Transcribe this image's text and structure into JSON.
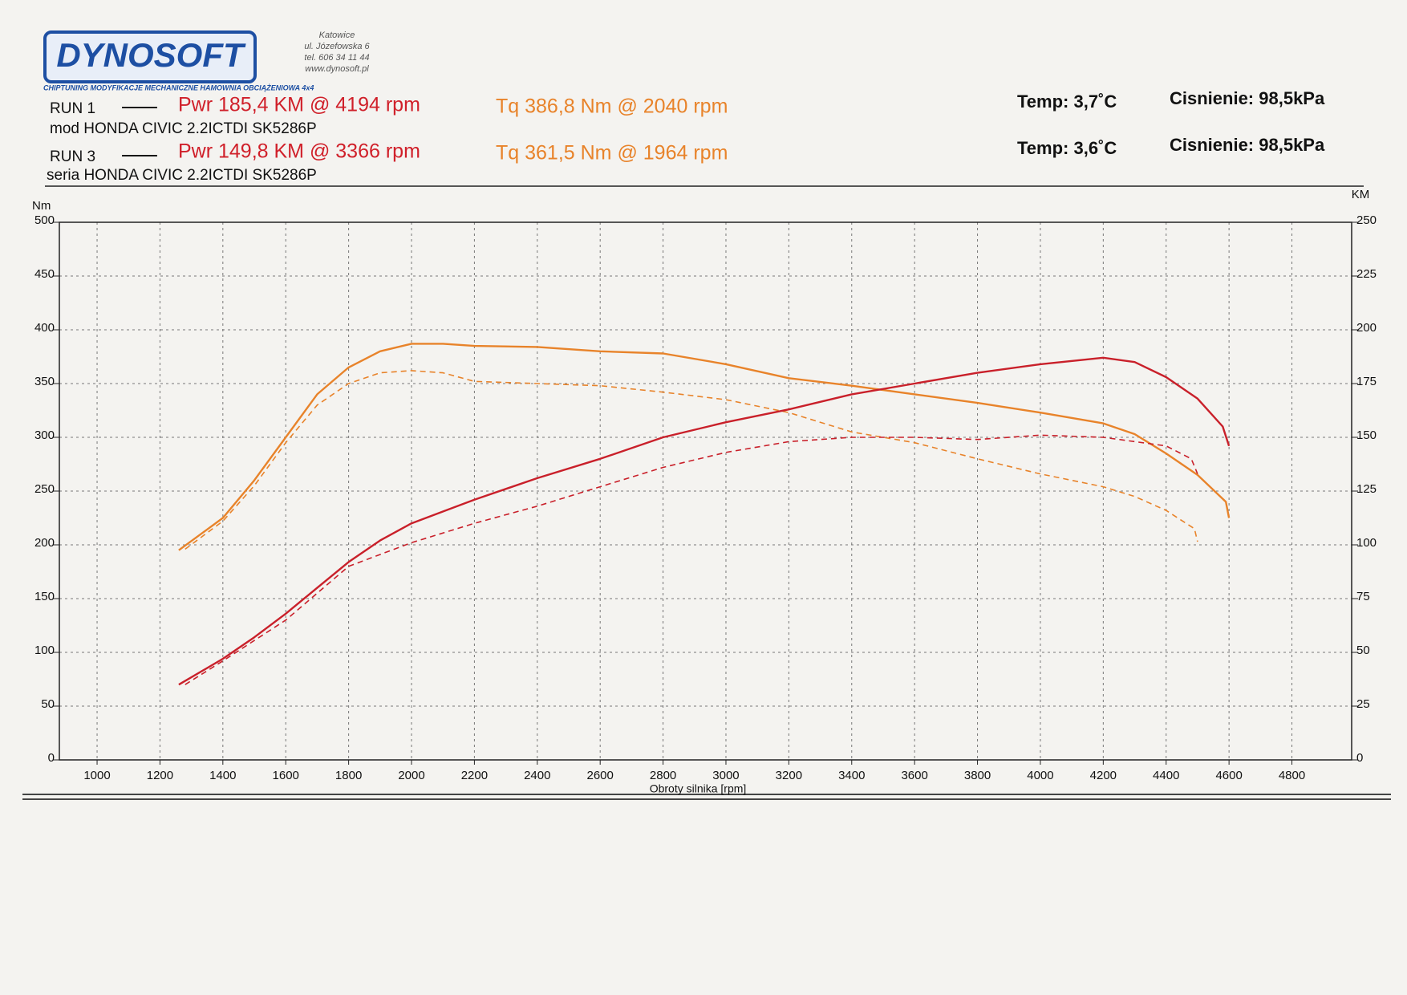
{
  "header": {
    "logo": "DYNOSOFT",
    "address": [
      "Katowice",
      "ul. Józefowska 6",
      "tel. 606 34 11 44",
      "www.dynosoft.pl"
    ],
    "tagline": "CHIPTUNING   MODYFIKACJE MECHANICZNE   HAMOWNIA OBCIĄŻENIOWA 4x4"
  },
  "runs": [
    {
      "label": "RUN 1",
      "power": "Pwr  185,4 KM @ 4194 rpm",
      "torque": "Tq 386,8 Nm @ 2040 rpm",
      "description": "mod HONDA CIVIC 2.2ICTDI SK5286P",
      "temp": "Temp: 3,7˚C",
      "pressure": "Cisnienie: 98,5kPa"
    },
    {
      "label": "RUN 3",
      "power": "Pwr  149,8 KM @ 3366 rpm",
      "torque": "Tq 361,5 Nm @ 1964 rpm",
      "description": "seria HONDA CIVIC 2.2ICTDI SK5286P",
      "temp": "Temp: 3,6˚C",
      "pressure": "Cisnienie: 98,5kPa"
    }
  ],
  "chart_data": {
    "type": "line",
    "x_label": "Obroty silnika [rpm]",
    "y_label": "Nm",
    "y2_label": "KM",
    "grid": true,
    "xlim": [
      880,
      4990
    ],
    "xticks": [
      1000,
      1200,
      1400,
      1600,
      1800,
      2000,
      2200,
      2400,
      2600,
      2800,
      3000,
      3200,
      3400,
      3600,
      3800,
      4000,
      4200,
      4400,
      4600,
      4800
    ],
    "ylim": [
      0,
      500
    ],
    "yticks": [
      0,
      50,
      100,
      150,
      200,
      250,
      300,
      350,
      400,
      450,
      500
    ],
    "y2lim": [
      0,
      250
    ],
    "y2ticks": [
      0,
      25,
      50,
      75,
      100,
      125,
      150,
      175,
      200,
      225,
      250
    ],
    "series": [
      {
        "color": "#e8832a",
        "dashed": false,
        "axis": "y",
        "x": [
          1260,
          1400,
          1500,
          1600,
          1700,
          1800,
          1900,
          2000,
          2100,
          2200,
          2400,
          2600,
          2800,
          3000,
          3200,
          3400,
          3600,
          3800,
          4000,
          4200,
          4300,
          4400,
          4500,
          4590,
          4600
        ],
        "values": [
          195,
          225,
          260,
          300,
          340,
          365,
          380,
          387,
          387,
          385,
          384,
          380,
          378,
          368,
          355,
          348,
          340,
          332,
          323,
          313,
          303,
          285,
          265,
          240,
          225
        ]
      },
      {
        "color": "#e8832a",
        "dashed": true,
        "axis": "y",
        "x": [
          1280,
          1400,
          1500,
          1600,
          1700,
          1800,
          1900,
          2000,
          2100,
          2200,
          2400,
          2600,
          2800,
          3000,
          3200,
          3400,
          3600,
          3800,
          4000,
          4200,
          4300,
          4400,
          4490,
          4500
        ],
        "values": [
          196,
          222,
          255,
          295,
          330,
          350,
          360,
          362,
          360,
          352,
          350,
          348,
          342,
          335,
          323,
          305,
          295,
          280,
          266,
          254,
          245,
          232,
          215,
          203
        ]
      },
      {
        "color": "#c9202a",
        "dashed": false,
        "axis": "y2",
        "x": [
          1260,
          1400,
          1500,
          1600,
          1700,
          1800,
          1900,
          2000,
          2200,
          2400,
          2600,
          2800,
          3000,
          3200,
          3400,
          3600,
          3800,
          4000,
          4200,
          4300,
          4400,
          4500,
          4580,
          4600
        ],
        "values": [
          35,
          47,
          57,
          68,
          80,
          92,
          102,
          110,
          121,
          131,
          140,
          150,
          157,
          163,
          170,
          175,
          180,
          184,
          187,
          185,
          178,
          168,
          155,
          146
        ]
      },
      {
        "color": "#c9202a",
        "dashed": true,
        "axis": "y2",
        "x": [
          1280,
          1400,
          1600,
          1800,
          2000,
          2200,
          2400,
          2600,
          2800,
          3000,
          3200,
          3400,
          3600,
          3800,
          4000,
          4200,
          4400,
          4480,
          4500
        ],
        "values": [
          35,
          46,
          65,
          90,
          101,
          110,
          118,
          127,
          136,
          143,
          148,
          150,
          150,
          149,
          151,
          150,
          146,
          140,
          133
        ]
      }
    ]
  }
}
